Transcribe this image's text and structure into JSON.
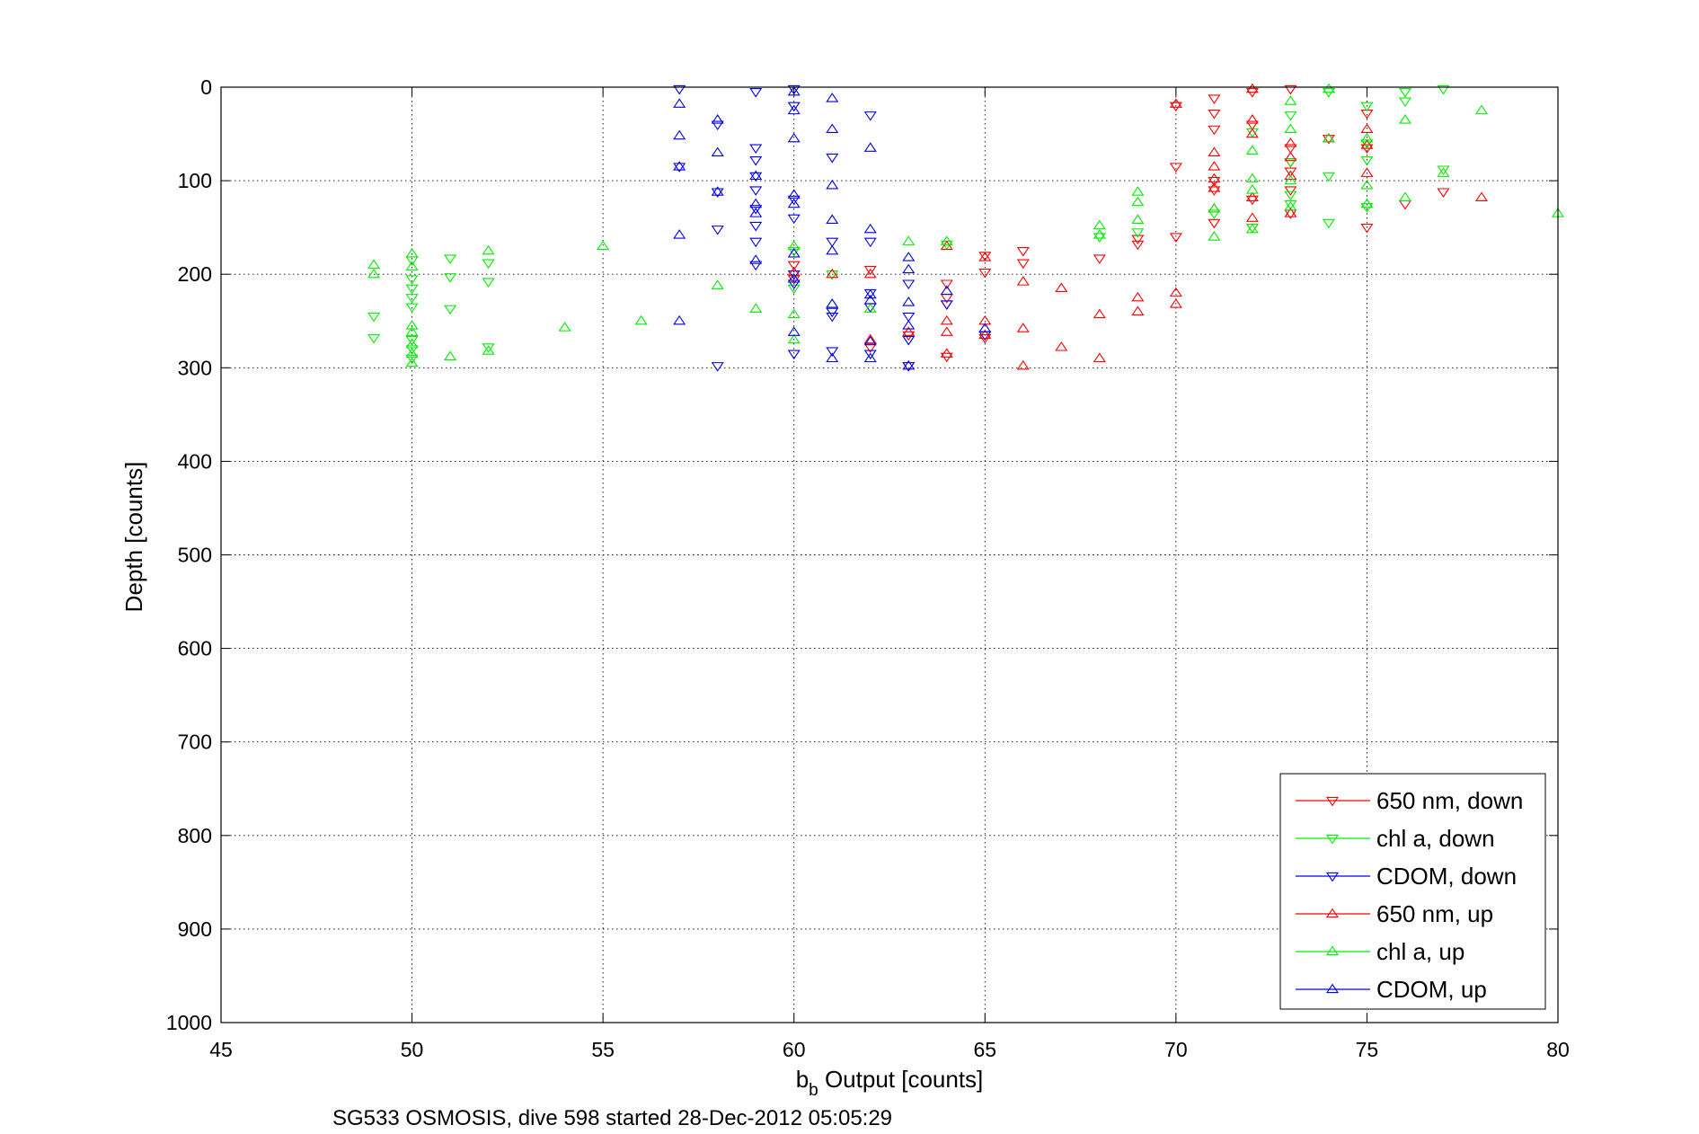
{
  "chart_data": {
    "type": "scatter",
    "title": "",
    "xlabel": {
      "main": "b",
      "sub": "b",
      "rest": " Output [counts]"
    },
    "ylabel": "Depth [counts]",
    "caption": "SG533 OSMOSIS, dive 598 started 28-Dec-2012 05:05:29",
    "xlim": [
      45,
      80
    ],
    "ylim": [
      0,
      1000
    ],
    "y_reversed": true,
    "grid": true,
    "grid_style": "dotted",
    "xticks": [
      45,
      50,
      55,
      60,
      65,
      70,
      75,
      80
    ],
    "yticks": [
      0,
      100,
      200,
      300,
      400,
      500,
      600,
      700,
      800,
      900,
      1000
    ],
    "legend_position": "bottom-right",
    "series": [
      {
        "name": "650 nm, down",
        "color": "#ff0000",
        "marker": "triangle-down",
        "points": [
          [
            70,
            20
          ],
          [
            70,
            85
          ],
          [
            70,
            160
          ],
          [
            71,
            12
          ],
          [
            71,
            28
          ],
          [
            71,
            45
          ],
          [
            71,
            100
          ],
          [
            71,
            110
          ],
          [
            71,
            145
          ],
          [
            72,
            5
          ],
          [
            72,
            40
          ],
          [
            72,
            120
          ],
          [
            72,
            150
          ],
          [
            73,
            2
          ],
          [
            73,
            65
          ],
          [
            73,
            80
          ],
          [
            73,
            90
          ],
          [
            73,
            110
          ],
          [
            73,
            135
          ],
          [
            74,
            55
          ],
          [
            75,
            28
          ],
          [
            75,
            65
          ],
          [
            75,
            150
          ],
          [
            76,
            125
          ],
          [
            77,
            112
          ],
          [
            65,
            180
          ],
          [
            65,
            198
          ],
          [
            65,
            268
          ],
          [
            66,
            175
          ],
          [
            66,
            188
          ],
          [
            64,
            210
          ],
          [
            64,
            225
          ],
          [
            64,
            232
          ],
          [
            64,
            288
          ],
          [
            63,
            265
          ],
          [
            63,
            298
          ],
          [
            62,
            195
          ],
          [
            62,
            278
          ],
          [
            60,
            190
          ],
          [
            60,
            205
          ],
          [
            68,
            183
          ],
          [
            69,
            162
          ],
          [
            69,
            168
          ]
        ]
      },
      {
        "name": "chl a, down",
        "color": "#00ee00",
        "marker": "triangle-down",
        "points": [
          [
            49,
            245
          ],
          [
            49,
            268
          ],
          [
            50,
            185
          ],
          [
            50,
            205
          ],
          [
            50,
            215
          ],
          [
            50,
            225
          ],
          [
            50,
            235
          ],
          [
            50,
            270
          ],
          [
            50,
            280
          ],
          [
            50,
            290
          ],
          [
            51,
            183
          ],
          [
            51,
            203
          ],
          [
            51,
            237
          ],
          [
            52,
            188
          ],
          [
            52,
            208
          ],
          [
            52,
            278
          ],
          [
            60,
            175
          ],
          [
            60,
            215
          ],
          [
            61,
            200
          ],
          [
            63,
            270
          ],
          [
            64,
            168
          ],
          [
            68,
            160
          ],
          [
            69,
            155
          ],
          [
            71,
            135
          ],
          [
            72,
            48
          ],
          [
            72,
            150
          ],
          [
            73,
            30
          ],
          [
            73,
            80
          ],
          [
            73,
            115
          ],
          [
            73,
            125
          ],
          [
            74,
            95
          ],
          [
            74,
            145
          ],
          [
            74,
            5
          ],
          [
            75,
            20
          ],
          [
            75,
            60
          ],
          [
            75,
            78
          ],
          [
            75,
            128
          ],
          [
            76,
            5
          ],
          [
            76,
            15
          ],
          [
            77,
            2
          ],
          [
            77,
            88
          ]
        ]
      },
      {
        "name": "CDOM, down",
        "color": "#0000ee",
        "marker": "triangle-down",
        "points": [
          [
            57,
            2
          ],
          [
            57,
            85
          ],
          [
            58,
            40
          ],
          [
            58,
            112
          ],
          [
            58,
            152
          ],
          [
            58,
            298
          ],
          [
            59,
            5
          ],
          [
            59,
            65
          ],
          [
            59,
            78
          ],
          [
            59,
            95
          ],
          [
            59,
            110
          ],
          [
            59,
            130
          ],
          [
            59,
            148
          ],
          [
            59,
            165
          ],
          [
            59,
            190
          ],
          [
            60,
            2
          ],
          [
            60,
            20
          ],
          [
            60,
            120
          ],
          [
            60,
            140
          ],
          [
            60,
            200
          ],
          [
            60,
            210
          ],
          [
            60,
            285
          ],
          [
            61,
            75
          ],
          [
            61,
            165
          ],
          [
            61,
            240
          ],
          [
            61,
            245
          ],
          [
            61,
            282
          ],
          [
            62,
            30
          ],
          [
            62,
            165
          ],
          [
            62,
            220
          ],
          [
            62,
            235
          ],
          [
            62,
            285
          ],
          [
            63,
            210
          ],
          [
            63,
            245
          ],
          [
            63,
            270
          ],
          [
            63,
            298
          ],
          [
            64,
            232
          ],
          [
            65,
            265
          ]
        ]
      },
      {
        "name": "650 nm, up",
        "color": "#ff0000",
        "marker": "triangle-up",
        "points": [
          [
            70,
            18
          ],
          [
            70,
            220
          ],
          [
            70,
            232
          ],
          [
            71,
            70
          ],
          [
            71,
            85
          ],
          [
            71,
            98
          ],
          [
            71,
            108
          ],
          [
            71,
            130
          ],
          [
            72,
            2
          ],
          [
            72,
            35
          ],
          [
            72,
            50
          ],
          [
            72,
            118
          ],
          [
            72,
            140
          ],
          [
            73,
            60
          ],
          [
            73,
            75
          ],
          [
            73,
            95
          ],
          [
            73,
            135
          ],
          [
            74,
            55
          ],
          [
            75,
            45
          ],
          [
            75,
            62
          ],
          [
            75,
            92
          ],
          [
            65,
            182
          ],
          [
            65,
            250
          ],
          [
            65,
            265
          ],
          [
            66,
            208
          ],
          [
            66,
            258
          ],
          [
            66,
            298
          ],
          [
            67,
            215
          ],
          [
            67,
            278
          ],
          [
            68,
            243
          ],
          [
            68,
            290
          ],
          [
            69,
            225
          ],
          [
            69,
            240
          ],
          [
            64,
            170
          ],
          [
            64,
            250
          ],
          [
            64,
            262
          ],
          [
            64,
            285
          ],
          [
            62,
            200
          ],
          [
            62,
            270
          ],
          [
            61,
            200
          ],
          [
            60,
            198
          ],
          [
            63,
            262
          ],
          [
            78,
            118
          ]
        ]
      },
      {
        "name": "chl a, up",
        "color": "#00ee00",
        "marker": "triangle-up",
        "points": [
          [
            49,
            190
          ],
          [
            49,
            200
          ],
          [
            50,
            178
          ],
          [
            50,
            192
          ],
          [
            50,
            255
          ],
          [
            50,
            262
          ],
          [
            50,
            275
          ],
          [
            50,
            285
          ],
          [
            50,
            295
          ],
          [
            51,
            288
          ],
          [
            52,
            175
          ],
          [
            52,
            282
          ],
          [
            54,
            257
          ],
          [
            55,
            170
          ],
          [
            56,
            250
          ],
          [
            58,
            212
          ],
          [
            59,
            237
          ],
          [
            60,
            170
          ],
          [
            60,
            243
          ],
          [
            60,
            270
          ],
          [
            61,
            232
          ],
          [
            62,
            237
          ],
          [
            63,
            165
          ],
          [
            64,
            165
          ],
          [
            68,
            148
          ],
          [
            68,
            158
          ],
          [
            69,
            112
          ],
          [
            69,
            123
          ],
          [
            69,
            142
          ],
          [
            71,
            130
          ],
          [
            71,
            160
          ],
          [
            72,
            68
          ],
          [
            72,
            98
          ],
          [
            72,
            110
          ],
          [
            72,
            152
          ],
          [
            73,
            15
          ],
          [
            73,
            45
          ],
          [
            73,
            100
          ],
          [
            73,
            128
          ],
          [
            74,
            2
          ],
          [
            74,
            55
          ],
          [
            75,
            55
          ],
          [
            75,
            105
          ],
          [
            75,
            125
          ],
          [
            76,
            35
          ],
          [
            76,
            118
          ],
          [
            77,
            92
          ],
          [
            78,
            25
          ],
          [
            80,
            135
          ]
        ]
      },
      {
        "name": "CDOM, up",
        "color": "#0000ee",
        "marker": "triangle-up",
        "points": [
          [
            57,
            18
          ],
          [
            57,
            52
          ],
          [
            57,
            85
          ],
          [
            57,
            158
          ],
          [
            57,
            250
          ],
          [
            58,
            35
          ],
          [
            58,
            70
          ],
          [
            58,
            112
          ],
          [
            59,
            95
          ],
          [
            59,
            125
          ],
          [
            59,
            135
          ],
          [
            59,
            185
          ],
          [
            60,
            5
          ],
          [
            60,
            25
          ],
          [
            60,
            55
          ],
          [
            60,
            115
          ],
          [
            60,
            125
          ],
          [
            60,
            178
          ],
          [
            60,
            205
          ],
          [
            60,
            262
          ],
          [
            61,
            12
          ],
          [
            61,
            45
          ],
          [
            61,
            105
          ],
          [
            61,
            142
          ],
          [
            61,
            175
          ],
          [
            61,
            232
          ],
          [
            61,
            290
          ],
          [
            62,
            65
          ],
          [
            62,
            152
          ],
          [
            62,
            222
          ],
          [
            62,
            228
          ],
          [
            62,
            272
          ],
          [
            62,
            290
          ],
          [
            63,
            182
          ],
          [
            63,
            195
          ],
          [
            63,
            230
          ],
          [
            63,
            255
          ],
          [
            63,
            298
          ],
          [
            64,
            218
          ],
          [
            65,
            258
          ]
        ]
      }
    ]
  }
}
